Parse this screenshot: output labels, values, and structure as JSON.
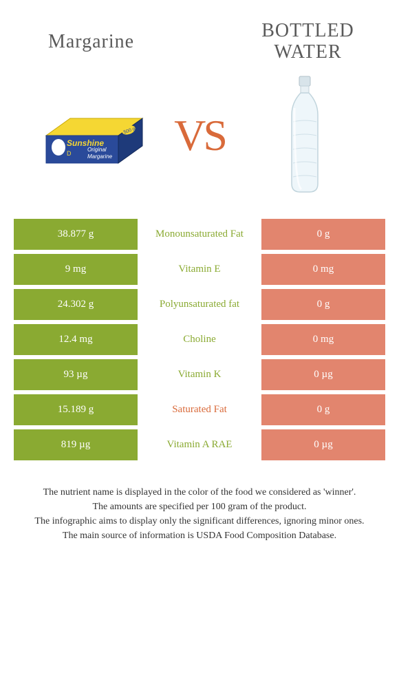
{
  "header": {
    "left_title": "Margarine",
    "right_title_line1": "BOTTLED",
    "right_title_line2": "WATER",
    "vs_text": "VS"
  },
  "colors": {
    "left_cell_bg": "#8aaa32",
    "right_cell_bg": "#e2856e",
    "nutrient_green": "#8aaa32",
    "nutrient_orange": "#d96a3a",
    "row_gap_bg": "#ffffff"
  },
  "rows": [
    {
      "left": "38.877 g",
      "nutrient": "Monounsaturated Fat",
      "right": "0 g",
      "winner": "left"
    },
    {
      "left": "9 mg",
      "nutrient": "Vitamin E",
      "right": "0 mg",
      "winner": "left"
    },
    {
      "left": "24.302 g",
      "nutrient": "Polyunsaturated fat",
      "right": "0 g",
      "winner": "left"
    },
    {
      "left": "12.4 mg",
      "nutrient": "Choline",
      "right": "0 mg",
      "winner": "left"
    },
    {
      "left": "93 µg",
      "nutrient": "Vitamin K",
      "right": "0 µg",
      "winner": "left"
    },
    {
      "left": "15.189 g",
      "nutrient": "Saturated Fat",
      "right": "0 g",
      "winner": "right"
    },
    {
      "left": "819 µg",
      "nutrient": "Vitamin A RAE",
      "right": "0 µg",
      "winner": "left"
    }
  ],
  "footer": {
    "line1": "The nutrient name is displayed in the color of the food we considered as 'winner'.",
    "line2": "The amounts are specified per 100 gram of the product.",
    "line3": "The infographic aims to display only the significant differences, ignoring minor ones.",
    "line4": "The main source of information is USDA Food Composition Database."
  }
}
